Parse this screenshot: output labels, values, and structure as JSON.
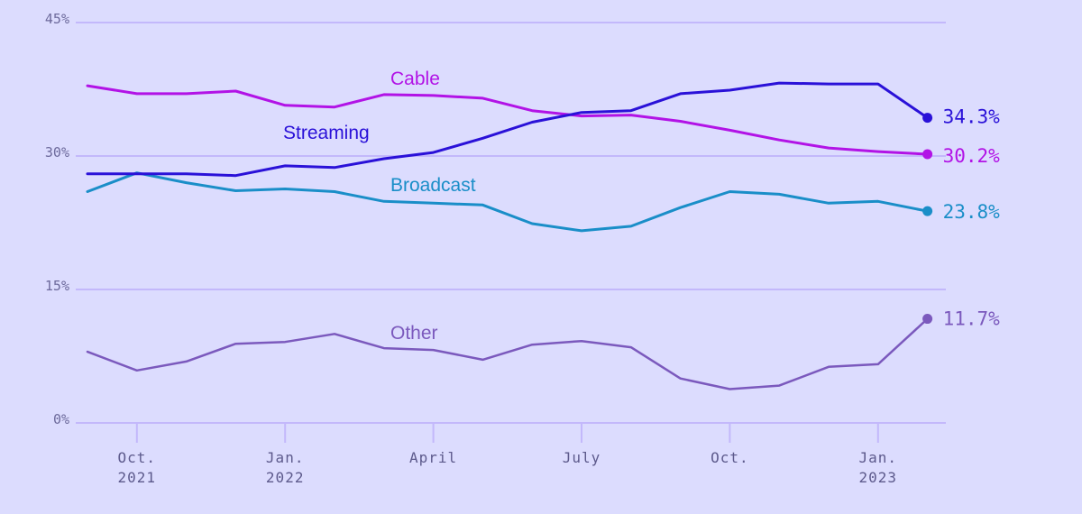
{
  "chart_data": {
    "type": "line",
    "x": [
      "2021-09",
      "2021-10",
      "2021-11",
      "2021-12",
      "2022-01",
      "2022-02",
      "2022-03",
      "2022-04",
      "2022-05",
      "2022-06",
      "2022-07",
      "2022-08",
      "2022-09",
      "2022-10",
      "2022-11",
      "2022-12",
      "2023-01",
      "2023-02"
    ],
    "y_ticks": [
      "0%",
      "15%",
      "30%",
      "45%"
    ],
    "ylim": [
      0,
      45
    ],
    "x_ticks": [
      {
        "label": "Oct.",
        "sub": "2021",
        "x": "2021-10"
      },
      {
        "label": "Jan.",
        "sub": "2022",
        "x": "2022-01"
      },
      {
        "label": "April",
        "sub": "",
        "x": "2022-04"
      },
      {
        "label": "July",
        "sub": "",
        "x": "2022-07"
      },
      {
        "label": "Oct.",
        "sub": "",
        "x": "2022-10"
      },
      {
        "label": "Jan.",
        "sub": "2023",
        "x": "2023-01"
      }
    ],
    "grid": true,
    "series": [
      {
        "name": "Cable",
        "color": "#b213e6",
        "label_at": "2022-04",
        "end_label": "30.2%",
        "values": [
          37.9,
          37.0,
          37.0,
          37.3,
          35.7,
          35.5,
          36.9,
          36.8,
          36.5,
          35.1,
          34.5,
          34.6,
          33.9,
          32.9,
          31.8,
          30.9,
          30.5,
          30.2
        ]
      },
      {
        "name": "Streaming",
        "color": "#2a11d8",
        "label_at": "2022-02",
        "end_label": "34.3%",
        "values": [
          28.0,
          28.0,
          28.0,
          27.8,
          28.9,
          28.7,
          29.7,
          30.4,
          32.0,
          33.8,
          34.9,
          35.1,
          37.0,
          37.4,
          38.2,
          38.1,
          38.1,
          34.3
        ]
      },
      {
        "name": "Broadcast",
        "color": "#1a8ec8",
        "label_at": "2022-04",
        "end_label": "23.8%",
        "values": [
          26.0,
          28.1,
          27.0,
          26.1,
          26.3,
          26.0,
          24.9,
          24.7,
          24.5,
          22.4,
          21.6,
          22.1,
          24.2,
          26.0,
          25.7,
          24.7,
          24.9,
          23.8
        ]
      },
      {
        "name": "Other",
        "color": "#7b59bd",
        "label_at": "2022-04",
        "end_label": "11.7%",
        "values": [
          8.0,
          5.9,
          6.9,
          8.9,
          9.1,
          10.0,
          8.4,
          8.2,
          7.1,
          8.8,
          9.2,
          8.5,
          5.0,
          3.8,
          4.2,
          6.3,
          6.6,
          11.7
        ]
      }
    ]
  }
}
